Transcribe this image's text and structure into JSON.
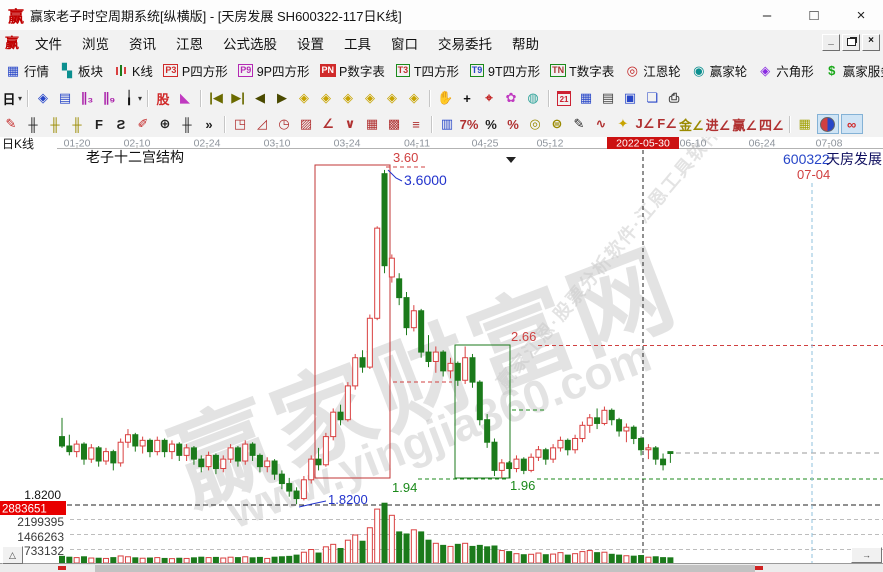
{
  "window": {
    "logo": "赢",
    "title": "赢家老子时空周期系统[纵横版] - [天房发展  SH600322-117日K线]",
    "minimize": "–",
    "maximize": "□",
    "close": "×"
  },
  "menu": {
    "logo": "赢",
    "items": [
      "文件",
      "浏览",
      "资讯",
      "江恩",
      "公式选股",
      "设置",
      "工具",
      "窗口",
      "交易委托",
      "帮助"
    ],
    "child_min": "_",
    "child_close": "×"
  },
  "toolbar_main": [
    {
      "name": "quotes-button",
      "label": "行情",
      "glyph": "▦",
      "color": "#2746c8"
    },
    {
      "name": "blocks-button",
      "label": "板块",
      "glyph": "▚",
      "color": "#0b8f8f"
    },
    {
      "name": "kline-button",
      "label": "K线",
      "special": "kline"
    },
    {
      "name": "p-square-button",
      "label": "P四方形",
      "badge": "P3",
      "bcolor": "#d02a2a",
      "btext": "#d02a2a"
    },
    {
      "name": "p9-square-button",
      "label": "9P四方形",
      "badge": "P9",
      "bcolor": "#b429b4",
      "btext": "#b429b4"
    },
    {
      "name": "p-number-button",
      "label": "P数字表",
      "badge": "PN",
      "bcolor": "#d02a2a",
      "btext": "#fff",
      "bfill": "#d02a2a"
    },
    {
      "name": "t-square-button",
      "label": "T四方形",
      "badge": "T3",
      "bcolor": "#1b8a1b",
      "btext": "#c03030"
    },
    {
      "name": "t9-square-button",
      "label": "9T四方形",
      "badge": "T9",
      "bcolor": "#1b8a1b",
      "btext": "#2746c8"
    },
    {
      "name": "t-number-button",
      "label": "T数字表",
      "badge": "TN",
      "bcolor": "#1b8a1b",
      "btext": "#a33"
    },
    {
      "name": "gann-wheel-button",
      "label": "江恩轮",
      "glyph": "◎",
      "color": "#c22222"
    },
    {
      "name": "winner-wheel-button",
      "label": "赢家轮",
      "glyph": "◉",
      "color": "#0b8f8f"
    },
    {
      "name": "hexagon-button",
      "label": "六角形",
      "glyph": "◈",
      "color": "#8a2be2"
    },
    {
      "name": "winner-service-button",
      "label": "赢家服务",
      "glyph": "$",
      "color": "#18a818"
    }
  ],
  "toolbar_view": [
    {
      "name": "period-day-dropdown",
      "glyph": "日",
      "color": "#111",
      "caret": true
    },
    {
      "sep": true
    },
    {
      "name": "chip-distribution-icon",
      "glyph": "◈",
      "color": "#2746c8"
    },
    {
      "name": "info-list-icon",
      "glyph": "▤",
      "color": "#2746c8"
    },
    {
      "name": "minute-3-icon",
      "glyph": "∥₃",
      "color": "#aa22aa"
    },
    {
      "name": "minute-9-icon",
      "glyph": "∥₉",
      "color": "#aa22aa"
    },
    {
      "name": "candle-style-dropdown",
      "glyph": "╽",
      "color": "#111",
      "caret": true
    },
    {
      "sep": true
    },
    {
      "name": "chip-peak-icon",
      "glyph": "股",
      "color": "#d02a2a"
    },
    {
      "name": "spectrum-icon",
      "glyph": "◣",
      "color": "#c03ac0"
    },
    {
      "sep": true
    },
    {
      "name": "first-bar-icon",
      "glyph": "|◀",
      "color": "#6b6b00",
      "small": true
    },
    {
      "name": "last-bar-icon",
      "glyph": "▶|",
      "color": "#6b6b00",
      "small": true
    },
    {
      "name": "prev-bar-icon",
      "glyph": "◀",
      "color": "#4a4a00"
    },
    {
      "name": "next-bar-icon",
      "glyph": "▶",
      "color": "#4a4a00"
    },
    {
      "name": "compress-x-icon",
      "glyph": "◈",
      "color": "#c8a400"
    },
    {
      "name": "expand-x-icon",
      "glyph": "◈",
      "color": "#c8a400"
    },
    {
      "name": "zoom-in-x-icon",
      "glyph": "◈",
      "color": "#c8a400"
    },
    {
      "name": "zoom-out-x-icon",
      "glyph": "◈",
      "color": "#c8a400"
    },
    {
      "name": "expand-xy-icon",
      "glyph": "◈",
      "color": "#c8a400"
    },
    {
      "name": "compress-xy-icon",
      "glyph": "◈",
      "color": "#c8a400"
    },
    {
      "sep": true
    },
    {
      "name": "hand-pan-icon",
      "glyph": "✋",
      "color": "#333"
    },
    {
      "name": "crosshair-icon",
      "glyph": "+",
      "color": "#111"
    },
    {
      "name": "zoom-area-icon",
      "glyph": "⌖",
      "color": "#c22222"
    },
    {
      "name": "flower-tool-icon",
      "glyph": "✿",
      "color": "#c03ac0"
    },
    {
      "name": "knot-tool-icon",
      "glyph": "◍",
      "color": "#2aa198"
    },
    {
      "sep": true
    },
    {
      "name": "calendar-icon",
      "special": "calendar",
      "caltext": "21"
    },
    {
      "name": "calculator-icon",
      "glyph": "▦",
      "color": "#2746c8"
    },
    {
      "name": "notes-icon",
      "glyph": "▤",
      "color": "#444"
    },
    {
      "name": "save-icon",
      "glyph": "▣",
      "color": "#2746c8"
    },
    {
      "name": "windows-copy-icon",
      "glyph": "❏",
      "color": "#2746c8"
    },
    {
      "name": "print-icon",
      "glyph": "⎙",
      "color": "#444"
    }
  ],
  "toolbar_draw": [
    {
      "name": "draw-brush-icon",
      "glyph": "✎",
      "color": "#c22222"
    },
    {
      "name": "gann-comb-icon",
      "glyph": "╫",
      "color": "#222"
    },
    {
      "name": "gold-comb-icon",
      "glyph": "╫",
      "color": "#9a8a00"
    },
    {
      "name": "gold-comb2-icon",
      "glyph": "╫",
      "color": "#9a8a00"
    },
    {
      "name": "f-comb-icon",
      "glyph": "F",
      "color": "#222"
    },
    {
      "name": "bow-comb-icon",
      "glyph": "Ƨ",
      "color": "#222"
    },
    {
      "name": "pencil-ruler-icon",
      "glyph": "✐",
      "color": "#c22222"
    },
    {
      "name": "compass-circle-icon",
      "glyph": "⊕",
      "color": "#222"
    },
    {
      "name": "comb-plain-icon",
      "glyph": "╫",
      "color": "#222"
    },
    {
      "name": "more-tools-chevron",
      "glyph": "»",
      "color": "#222"
    },
    {
      "sep": true
    },
    {
      "name": "gann-box-icon",
      "glyph": "◳",
      "color": "#b03030"
    },
    {
      "name": "fan-lines-icon",
      "glyph": "◿",
      "color": "#b03030"
    },
    {
      "name": "arc-fan-icon",
      "glyph": "◷",
      "color": "#b03030"
    },
    {
      "name": "hatch-box-icon",
      "glyph": "▨",
      "color": "#b03030"
    },
    {
      "name": "angle-line-icon",
      "glyph": "∠",
      "color": "#b03030"
    },
    {
      "name": "v-line-icon",
      "glyph": "∨",
      "color": "#b03030"
    },
    {
      "name": "price-grid-icon",
      "glyph": "▦",
      "color": "#b03030"
    },
    {
      "name": "price-grid2-icon",
      "glyph": "▩",
      "color": "#b03030"
    },
    {
      "name": "parallel-lines-icon",
      "glyph": "≡",
      "color": "#b03030"
    },
    {
      "sep": true
    },
    {
      "name": "volume-profile-icon",
      "glyph": "▥",
      "color": "#2746c8"
    },
    {
      "name": "seven-percent-icon",
      "glyph": "7%",
      "color": "#b03030",
      "small": true
    },
    {
      "name": "percent-icon",
      "glyph": "%",
      "color": "#222"
    },
    {
      "name": "percent-retrace-icon",
      "glyph": "%",
      "color": "#b03030"
    },
    {
      "name": "gold-circle-icon",
      "glyph": "◎",
      "color": "#9a8a00"
    },
    {
      "name": "gold-section-icon",
      "glyph": "⊜",
      "color": "#9a8a00"
    },
    {
      "name": "angle-brush-icon",
      "glyph": "✎",
      "color": "#222"
    },
    {
      "name": "wave-tool-icon",
      "glyph": "∿",
      "color": "#b03030"
    },
    {
      "name": "gold-star-icon",
      "glyph": "✦",
      "color": "#c8a400"
    },
    {
      "name": "j-angle-icon",
      "glyph": "J∠",
      "color": "#b03030",
      "small": true
    },
    {
      "name": "f-angle-icon",
      "glyph": "F∠",
      "color": "#b03030",
      "small": true
    },
    {
      "name": "gold-angle-icon",
      "glyph": "金∠",
      "color": "#9a8a00",
      "small": true
    },
    {
      "name": "step-angle-icon",
      "glyph": "进∠",
      "color": "#b03030",
      "small": true
    },
    {
      "name": "win-angle-icon",
      "glyph": "赢∠",
      "color": "#b03030",
      "small": true
    },
    {
      "name": "four-angle-icon",
      "glyph": "四∠",
      "color": "#b03030",
      "small": true
    },
    {
      "sep": true
    },
    {
      "name": "grid-toggle-icon",
      "glyph": "▦",
      "color": "#a0a000"
    },
    {
      "name": "yinyang-icon",
      "special": "yinyang",
      "pressed": true
    },
    {
      "name": "infinity-icon",
      "glyph": "∞",
      "color": "#d02a2a",
      "pressed": true
    }
  ],
  "chart": {
    "period_label": "日K线",
    "structure_label": "老子十二宫结构",
    "stock_code": "600322",
    "stock_name": "天房发展",
    "future_date": "07-04",
    "annotations": {
      "peak": "3.60",
      "peak_full": "3.6000",
      "upper": "2.66",
      "red_box_low": "1.94",
      "green_box_low": "1.96",
      "low_full": "1.8200",
      "low_axis": "1.8200"
    },
    "volume_ticks": [
      "2883651",
      "2199395",
      "1466263",
      "733132"
    ]
  },
  "watermarks": {
    "site_name": "赢家财富网",
    "site_url": "www.yingjia360.com",
    "slogan": "赢家江恩·股票分析软件·江恩工具软件"
  },
  "scrollbar": {
    "up": "△",
    "right": "→"
  },
  "chart_data": {
    "type": "candlestick",
    "symbol": "SH600322",
    "name": "天房发展",
    "period": "117日K线",
    "x_tick_labels": [
      "01-20",
      "02-10",
      "02-24",
      "03-10",
      "03-24",
      "04-11",
      "04-25",
      "05-12",
      "2022-05-30",
      "06-10",
      "06-24",
      "07-08"
    ],
    "highlight_tick": "2022-05-30",
    "price_levels": {
      "peak": 3.6,
      "upper": 2.66,
      "red_box_bottom": 1.94,
      "green_box_bottom": 1.96,
      "low": 1.82,
      "last": 2.09
    },
    "volume_axis_ticks": [
      2883651,
      2199395,
      1466263,
      733132
    ],
    "candles": [
      [
        2.18,
        2.28,
        2.12,
        2.13,
        320000
      ],
      [
        2.13,
        2.19,
        2.08,
        2.1,
        280000
      ],
      [
        2.1,
        2.16,
        2.07,
        2.14,
        260000
      ],
      [
        2.14,
        2.15,
        2.03,
        2.06,
        300000
      ],
      [
        2.06,
        2.14,
        2.04,
        2.12,
        240000
      ],
      [
        2.12,
        2.13,
        2.02,
        2.05,
        230000
      ],
      [
        2.05,
        2.12,
        2.03,
        2.1,
        220000
      ],
      [
        2.1,
        2.11,
        2.0,
        2.04,
        260000
      ],
      [
        2.04,
        2.17,
        2.02,
        2.15,
        340000
      ],
      [
        2.15,
        2.22,
        2.12,
        2.19,
        300000
      ],
      [
        2.19,
        2.2,
        2.1,
        2.13,
        250000
      ],
      [
        2.13,
        2.18,
        2.09,
        2.16,
        230000
      ],
      [
        2.16,
        2.17,
        2.07,
        2.1,
        240000
      ],
      [
        2.1,
        2.18,
        2.08,
        2.16,
        260000
      ],
      [
        2.16,
        2.17,
        2.07,
        2.1,
        220000
      ],
      [
        2.1,
        2.16,
        2.06,
        2.14,
        210000
      ],
      [
        2.14,
        2.15,
        2.05,
        2.08,
        230000
      ],
      [
        2.08,
        2.14,
        2.05,
        2.12,
        220000
      ],
      [
        2.12,
        2.13,
        2.03,
        2.06,
        250000
      ],
      [
        2.06,
        2.08,
        1.99,
        2.02,
        280000
      ],
      [
        2.02,
        2.1,
        2.0,
        2.08,
        260000
      ],
      [
        2.08,
        2.09,
        1.98,
        2.01,
        270000
      ],
      [
        2.01,
        2.08,
        1.99,
        2.06,
        240000
      ],
      [
        2.06,
        2.14,
        2.04,
        2.12,
        280000
      ],
      [
        2.12,
        2.13,
        2.02,
        2.05,
        260000
      ],
      [
        2.05,
        2.16,
        2.03,
        2.14,
        300000
      ],
      [
        2.14,
        2.15,
        2.05,
        2.08,
        250000
      ],
      [
        2.08,
        2.09,
        1.99,
        2.02,
        270000
      ],
      [
        2.02,
        2.07,
        1.99,
        2.05,
        220000
      ],
      [
        2.05,
        2.06,
        1.95,
        1.98,
        280000
      ],
      [
        1.98,
        2.0,
        1.9,
        1.93,
        300000
      ],
      [
        1.93,
        1.96,
        1.86,
        1.89,
        320000
      ],
      [
        1.89,
        1.91,
        1.82,
        1.85,
        380000
      ],
      [
        1.85,
        1.97,
        1.84,
        1.95,
        520000
      ],
      [
        1.95,
        2.08,
        1.93,
        2.06,
        650000
      ],
      [
        2.06,
        2.12,
        2.0,
        2.03,
        480000
      ],
      [
        2.03,
        2.2,
        2.02,
        2.18,
        780000
      ],
      [
        2.18,
        2.33,
        2.16,
        2.31,
        900000
      ],
      [
        2.31,
        2.35,
        2.24,
        2.27,
        700000
      ],
      [
        2.27,
        2.47,
        2.26,
        2.45,
        1100000
      ],
      [
        2.45,
        2.62,
        2.43,
        2.6,
        1350000
      ],
      [
        2.6,
        2.64,
        2.52,
        2.55,
        1050000
      ],
      [
        2.55,
        2.83,
        2.54,
        2.81,
        1700000
      ],
      [
        2.81,
        3.3,
        2.8,
        3.29,
        2600000
      ],
      [
        3.58,
        3.6,
        3.05,
        3.09,
        2883651
      ],
      [
        3.03,
        3.15,
        3.0,
        3.13,
        2300000
      ],
      [
        3.02,
        3.05,
        2.88,
        2.92,
        1500000
      ],
      [
        2.92,
        2.95,
        2.72,
        2.76,
        1400000
      ],
      [
        2.76,
        2.88,
        2.74,
        2.85,
        1600000
      ],
      [
        2.85,
        2.86,
        2.6,
        2.63,
        1500000
      ],
      [
        2.63,
        2.72,
        2.55,
        2.58,
        1100000
      ],
      [
        2.58,
        2.66,
        2.52,
        2.63,
        950000
      ],
      [
        2.63,
        2.64,
        2.5,
        2.53,
        850000
      ],
      [
        2.53,
        2.6,
        2.49,
        2.57,
        800000
      ],
      [
        2.57,
        2.58,
        2.45,
        2.48,
        900000
      ],
      [
        2.48,
        2.66,
        2.46,
        2.6,
        950000
      ],
      [
        2.6,
        2.62,
        2.44,
        2.47,
        800000
      ],
      [
        2.47,
        2.48,
        2.24,
        2.27,
        850000
      ],
      [
        2.27,
        2.3,
        2.12,
        2.15,
        780000
      ],
      [
        2.15,
        2.17,
        1.97,
        2.0,
        820000
      ],
      [
        2.0,
        2.06,
        1.96,
        2.04,
        600000
      ],
      [
        2.04,
        2.05,
        1.96,
        2.01,
        550000
      ],
      [
        2.01,
        2.08,
        1.99,
        2.06,
        450000
      ],
      [
        2.06,
        2.07,
        1.98,
        2.0,
        400000
      ],
      [
        2.0,
        2.09,
        1.99,
        2.07,
        420000
      ],
      [
        2.07,
        2.13,
        2.05,
        2.11,
        480000
      ],
      [
        2.11,
        2.12,
        2.03,
        2.06,
        400000
      ],
      [
        2.06,
        2.14,
        2.04,
        2.12,
        430000
      ],
      [
        2.12,
        2.18,
        2.1,
        2.16,
        500000
      ],
      [
        2.16,
        2.17,
        2.08,
        2.11,
        380000
      ],
      [
        2.11,
        2.19,
        2.09,
        2.17,
        450000
      ],
      [
        2.17,
        2.26,
        2.15,
        2.24,
        550000
      ],
      [
        2.24,
        2.3,
        2.2,
        2.28,
        600000
      ],
      [
        2.28,
        2.33,
        2.22,
        2.25,
        500000
      ],
      [
        2.25,
        2.34,
        2.24,
        2.32,
        520000
      ],
      [
        2.32,
        2.33,
        2.24,
        2.27,
        420000
      ],
      [
        2.27,
        2.28,
        2.18,
        2.21,
        380000
      ],
      [
        2.21,
        2.25,
        2.15,
        2.23,
        350000
      ],
      [
        2.23,
        2.24,
        2.14,
        2.17,
        330000
      ],
      [
        2.17,
        2.18,
        2.08,
        2.11,
        360000
      ],
      [
        2.11,
        2.14,
        2.06,
        2.12,
        280000
      ],
      [
        2.12,
        2.13,
        2.03,
        2.06,
        300000
      ],
      [
        2.06,
        2.09,
        2.0,
        2.03,
        260000
      ],
      [
        2.1,
        2.1,
        2.04,
        2.09,
        250000
      ]
    ]
  },
  "colors": {
    "up": "#d94040",
    "down": "#1b7a1b",
    "box_red": "#c03535",
    "box_green": "#1b7a1b",
    "highlight_date_bg": "#cc1111",
    "annotation_blue": "#2233cc",
    "annotation_red": "#d04040",
    "annotation_green": "#1b8a1b",
    "volume_badge_bg": "#e80000"
  }
}
